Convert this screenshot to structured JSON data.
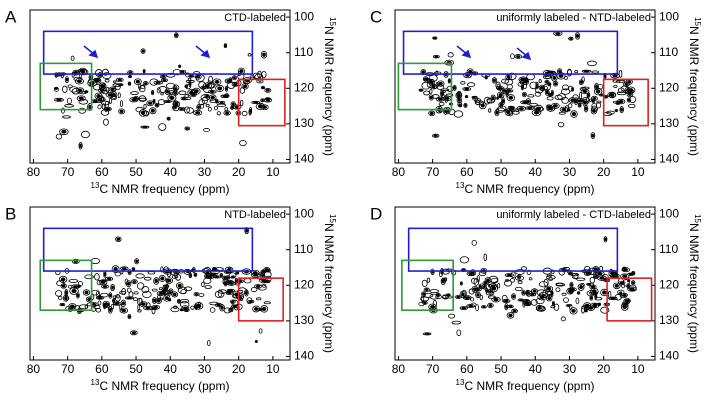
{
  "chart_data": [
    {
      "type": "contour",
      "panel": "A",
      "annotation": "CTD-labeled",
      "xlabel": [
        "13",
        "C NMR frequency (ppm)"
      ],
      "ylabel": [
        "15",
        "N NMR frequency (ppm)"
      ],
      "xlim": [
        81,
        5
      ],
      "ylim": [
        98,
        141
      ],
      "xticks": [
        80,
        70,
        60,
        50,
        40,
        30,
        20,
        10
      ],
      "yticks": [
        100,
        110,
        120,
        130,
        140
      ],
      "regions": [
        {
          "color": "#1f1fd0",
          "xlim": [
            77,
            16
          ],
          "ylim": [
            104,
            116
          ]
        },
        {
          "color": "#2a9a3a",
          "xlim": [
            78,
            63
          ],
          "ylim": [
            113,
            126
          ]
        },
        {
          "color": "#e02020",
          "xlim": [
            20,
            6.5
          ],
          "ylim": [
            117.5,
            130.5
          ]
        }
      ]
    },
    {
      "type": "contour",
      "panel": "B",
      "annotation": "NTD-labeled",
      "xlabel": [
        "13",
        "C NMR frequency (ppm)"
      ],
      "ylabel": [
        "15",
        "N NMR frequency (ppm)"
      ],
      "xlim": [
        81,
        5
      ],
      "ylim": [
        98,
        141
      ],
      "xticks": [
        80,
        70,
        60,
        50,
        40,
        30,
        20,
        10
      ],
      "yticks": [
        100,
        110,
        120,
        130,
        140
      ],
      "regions": [
        {
          "color": "#1f1fd0",
          "xlim": [
            77,
            16
          ],
          "ylim": [
            104,
            116
          ]
        },
        {
          "color": "#2a9a3a",
          "xlim": [
            78,
            63
          ],
          "ylim": [
            113,
            127
          ]
        },
        {
          "color": "#e02020",
          "xlim": [
            20,
            7
          ],
          "ylim": [
            118,
            130
          ]
        }
      ]
    },
    {
      "type": "contour",
      "panel": "C",
      "annotation": "uniformly labeled - NTD-labeled",
      "xlabel": [
        "13",
        "C NMR frequency (ppm)"
      ],
      "ylabel": [
        "15",
        "N NMR frequency (ppm)"
      ],
      "xlim": [
        81,
        5
      ],
      "ylim": [
        98,
        141
      ],
      "xticks": [
        80,
        70,
        60,
        50,
        40,
        30,
        20,
        10
      ],
      "yticks": [
        100,
        110,
        120,
        130,
        140
      ],
      "regions": [
        {
          "color": "#1f1fd0",
          "xlim": [
            78.5,
            16
          ],
          "ylim": [
            104,
            116
          ]
        },
        {
          "color": "#2a9a3a",
          "xlim": [
            80,
            64.5
          ],
          "ylim": [
            113,
            126
          ]
        },
        {
          "color": "#e02020",
          "xlim": [
            20,
            7
          ],
          "ylim": [
            117.5,
            130.5
          ]
        }
      ]
    },
    {
      "type": "contour",
      "panel": "D",
      "annotation": "uniformly labeled - CTD-labeled",
      "xlabel": [
        "13",
        "C NMR frequency (ppm)"
      ],
      "ylabel": [
        "15",
        "N NMR frequency (ppm)"
      ],
      "xlim": [
        81,
        5
      ],
      "ylim": [
        98,
        141
      ],
      "xticks": [
        80,
        70,
        60,
        50,
        40,
        30,
        20,
        10
      ],
      "yticks": [
        100,
        110,
        120,
        130,
        140
      ],
      "regions": [
        {
          "color": "#1f1fd0",
          "xlim": [
            77,
            16
          ],
          "ylim": [
            104,
            116
          ]
        },
        {
          "color": "#2a9a3a",
          "xlim": [
            79,
            64
          ],
          "ylim": [
            113,
            127
          ]
        },
        {
          "color": "#e02020",
          "xlim": [
            19,
            6
          ],
          "ylim": [
            118,
            130
          ]
        }
      ]
    }
  ]
}
